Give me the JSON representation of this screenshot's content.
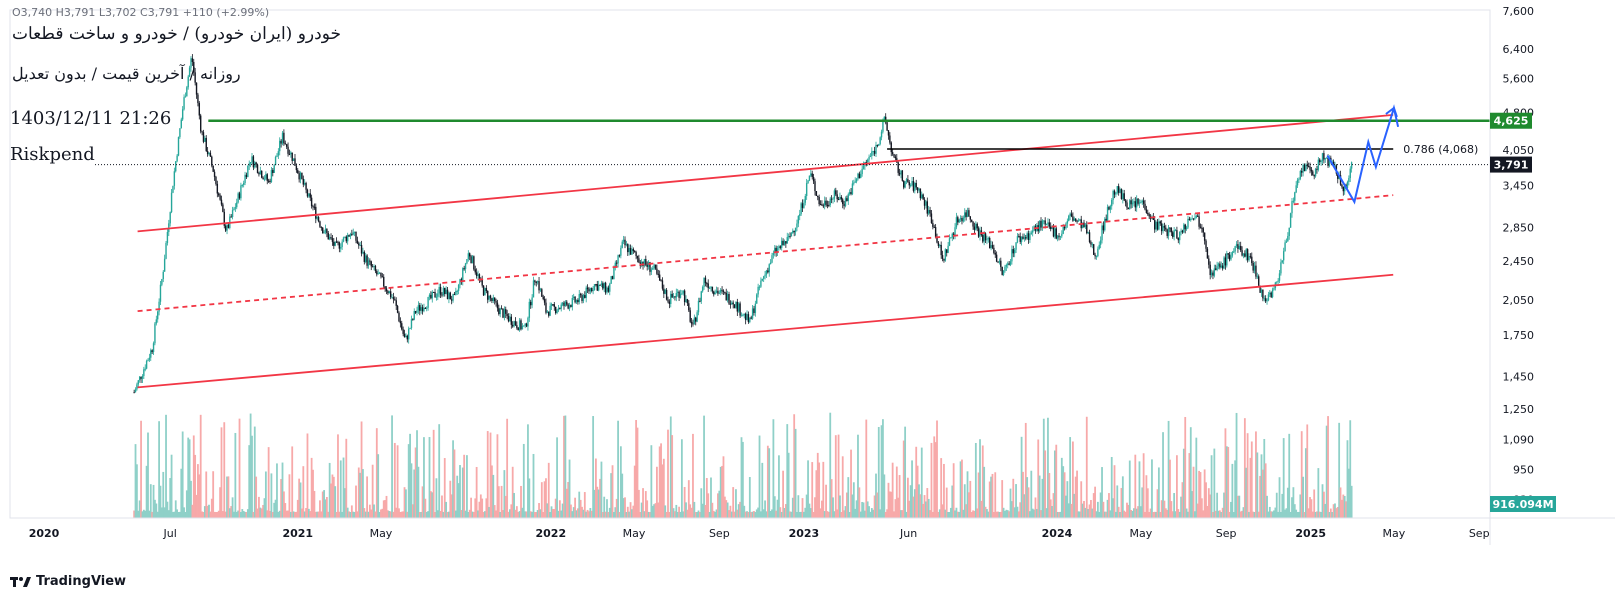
{
  "header": {
    "ohlc": "O3,740  H3,791  L3,702  C3,791  +110 (+2.99%)",
    "title": "خودرو (ایران خودرو) / خودرو و ساخت قطعات",
    "subtitle": "روزانه / آخرین قیمت / بدون تعدیل",
    "datetime": "1403/12/11 21:26",
    "author": "Riskpend"
  },
  "branding": {
    "logo_text": "TradingView"
  },
  "colors": {
    "up": "#26a69a",
    "down": "#131722",
    "channel": "#f23645",
    "resistance": "#1f8a2e",
    "fib": "#000000",
    "projection": "#2962ff",
    "vol_up": "#8fd0c8",
    "vol_down": "#f7a9a9"
  },
  "chart_data": {
    "type": "candlestick",
    "price_scale": "log",
    "y_ticks": [
      7600,
      6400,
      5600,
      4800,
      4050,
      3450,
      2850,
      2450,
      2050,
      1750,
      1450,
      1250,
      1090,
      950,
      830
    ],
    "y_tick_labels": [
      "7,600",
      "6,400",
      "5,600",
      "4,800",
      "4,050",
      "3,450",
      "2,850",
      "2,450",
      "2,050",
      "1,750",
      "1,450",
      "1,250",
      "1,090",
      "950",
      "830"
    ],
    "x_ticks": [
      {
        "date": "2020-01-01",
        "label": "2020",
        "major": true
      },
      {
        "date": "2020-07-01",
        "label": "Jul",
        "major": false
      },
      {
        "date": "2021-01-01",
        "label": "2021",
        "major": true
      },
      {
        "date": "2021-05-01",
        "label": "May",
        "major": false
      },
      {
        "date": "2022-01-01",
        "label": "2022",
        "major": true
      },
      {
        "date": "2022-05-01",
        "label": "May",
        "major": false
      },
      {
        "date": "2022-09-01",
        "label": "Sep",
        "major": false
      },
      {
        "date": "2023-01-01",
        "label": "2023",
        "major": true
      },
      {
        "date": "2023-06-01",
        "label": "Jun",
        "major": false
      },
      {
        "date": "2024-01-01",
        "label": "2024",
        "major": true
      },
      {
        "date": "2024-05-01",
        "label": "May",
        "major": false
      },
      {
        "date": "2024-09-01",
        "label": "Sep",
        "major": false
      },
      {
        "date": "2025-01-01",
        "label": "2025",
        "major": true
      },
      {
        "date": "2025-05-01",
        "label": "May",
        "major": false
      },
      {
        "date": "2025-09-01",
        "label": "Sep",
        "major": false
      }
    ],
    "price_path": [
      [
        "2020-05-10",
        1350
      ],
      [
        "2020-06-05",
        1650
      ],
      [
        "2020-06-20",
        2300
      ],
      [
        "2020-07-05",
        3500
      ],
      [
        "2020-07-20",
        5000
      ],
      [
        "2020-08-01",
        6200
      ],
      [
        "2020-08-15",
        4400
      ],
      [
        "2020-09-01",
        3700
      ],
      [
        "2020-09-20",
        2800
      ],
      [
        "2020-10-05",
        3200
      ],
      [
        "2020-10-25",
        3900
      ],
      [
        "2020-11-20",
        3500
      ],
      [
        "2020-12-10",
        4300
      ],
      [
        "2020-12-25",
        3900
      ],
      [
        "2021-01-15",
        3300
      ],
      [
        "2021-02-05",
        2850
      ],
      [
        "2021-02-25",
        2600
      ],
      [
        "2021-03-20",
        2800
      ],
      [
        "2021-04-10",
        2450
      ],
      [
        "2021-05-01",
        2250
      ],
      [
        "2021-05-20",
        2050
      ],
      [
        "2021-06-05",
        1700
      ],
      [
        "2021-06-20",
        1950
      ],
      [
        "2021-07-10",
        2050
      ],
      [
        "2021-07-25",
        2150
      ],
      [
        "2021-08-15",
        2050
      ],
      [
        "2021-09-05",
        2550
      ],
      [
        "2021-09-25",
        2150
      ],
      [
        "2021-10-20",
        1950
      ],
      [
        "2021-11-10",
        1850
      ],
      [
        "2021-11-25",
        1800
      ],
      [
        "2021-12-10",
        2300
      ],
      [
        "2021-12-25",
        1950
      ],
      [
        "2022-01-20",
        2000
      ],
      [
        "2022-02-10",
        2050
      ],
      [
        "2022-03-05",
        2200
      ],
      [
        "2022-03-25",
        2150
      ],
      [
        "2022-04-15",
        2650
      ],
      [
        "2022-05-10",
        2450
      ],
      [
        "2022-05-30",
        2350
      ],
      [
        "2022-06-20",
        2050
      ],
      [
        "2022-07-10",
        2150
      ],
      [
        "2022-07-25",
        1800
      ],
      [
        "2022-08-10",
        2250
      ],
      [
        "2022-08-25",
        2150
      ],
      [
        "2022-09-20",
        2050
      ],
      [
        "2022-10-15",
        1850
      ],
      [
        "2022-10-30",
        2200
      ],
      [
        "2022-11-20",
        2550
      ],
      [
        "2022-12-10",
        2700
      ],
      [
        "2022-12-25",
        3000
      ],
      [
        "2023-01-10",
        3650
      ],
      [
        "2023-01-25",
        3150
      ],
      [
        "2023-02-15",
        3300
      ],
      [
        "2023-03-01",
        3200
      ],
      [
        "2023-03-25",
        3700
      ],
      [
        "2023-04-15",
        4100
      ],
      [
        "2023-04-28",
        4650
      ],
      [
        "2023-05-10",
        3900
      ],
      [
        "2023-05-25",
        3500
      ],
      [
        "2023-06-15",
        3400
      ],
      [
        "2023-07-05",
        2950
      ],
      [
        "2023-07-20",
        2450
      ],
      [
        "2023-08-10",
        2950
      ],
      [
        "2023-08-25",
        3050
      ],
      [
        "2023-09-10",
        2800
      ],
      [
        "2023-10-01",
        2600
      ],
      [
        "2023-10-15",
        2300
      ],
      [
        "2023-11-05",
        2700
      ],
      [
        "2023-11-20",
        2750
      ],
      [
        "2023-12-10",
        2900
      ],
      [
        "2024-01-05",
        2750
      ],
      [
        "2024-01-20",
        3000
      ],
      [
        "2024-02-10",
        2850
      ],
      [
        "2024-02-25",
        2500
      ],
      [
        "2024-03-10",
        2950
      ],
      [
        "2024-03-25",
        3400
      ],
      [
        "2024-04-15",
        3150
      ],
      [
        "2024-05-05",
        3200
      ],
      [
        "2024-05-20",
        2900
      ],
      [
        "2024-06-10",
        2800
      ],
      [
        "2024-06-25",
        2750
      ],
      [
        "2024-07-15",
        3050
      ],
      [
        "2024-07-30",
        2850
      ],
      [
        "2024-08-10",
        2300
      ],
      [
        "2024-08-25",
        2400
      ],
      [
        "2024-09-15",
        2600
      ],
      [
        "2024-10-05",
        2500
      ],
      [
        "2024-10-15",
        2300
      ],
      [
        "2024-10-25",
        2050
      ],
      [
        "2024-11-10",
        2150
      ],
      [
        "2024-11-25",
        2600
      ],
      [
        "2024-12-05",
        3150
      ],
      [
        "2024-12-20",
        3750
      ],
      [
        "2025-01-05",
        3650
      ],
      [
        "2025-01-20",
        3950
      ],
      [
        "2025-02-05",
        3700
      ],
      [
        "2025-02-20",
        3350
      ],
      [
        "2025-03-01",
        3791
      ]
    ],
    "last_price": 3791,
    "volume_label": "916.094M",
    "annotations": {
      "resistance": {
        "value": 4625,
        "label": "4,625",
        "from": "2020-08-25",
        "to": "2025-06-05"
      },
      "fib": {
        "value": 4068,
        "label": "0.786 (4,068)",
        "from": "2023-05-01",
        "to": "2025-04-30"
      },
      "channel_upper": {
        "p1": [
          "2020-05-15",
          2800
        ],
        "p2": [
          "2025-04-30",
          4750
        ]
      },
      "channel_mid": {
        "p1": [
          "2020-05-15",
          1950
        ],
        "p2": [
          "2025-04-30",
          3300
        ]
      },
      "channel_lower": {
        "p1": [
          "2020-05-15",
          1380
        ],
        "p2": [
          "2025-04-30",
          2300
        ]
      },
      "projection": [
        [
          "2025-01-25",
          3950
        ],
        [
          "2025-03-05",
          3200
        ],
        [
          "2025-03-25",
          4200
        ],
        [
          "2025-04-05",
          3750
        ],
        [
          "2025-05-01",
          4900
        ],
        [
          "2025-05-07",
          4500
        ]
      ]
    }
  }
}
